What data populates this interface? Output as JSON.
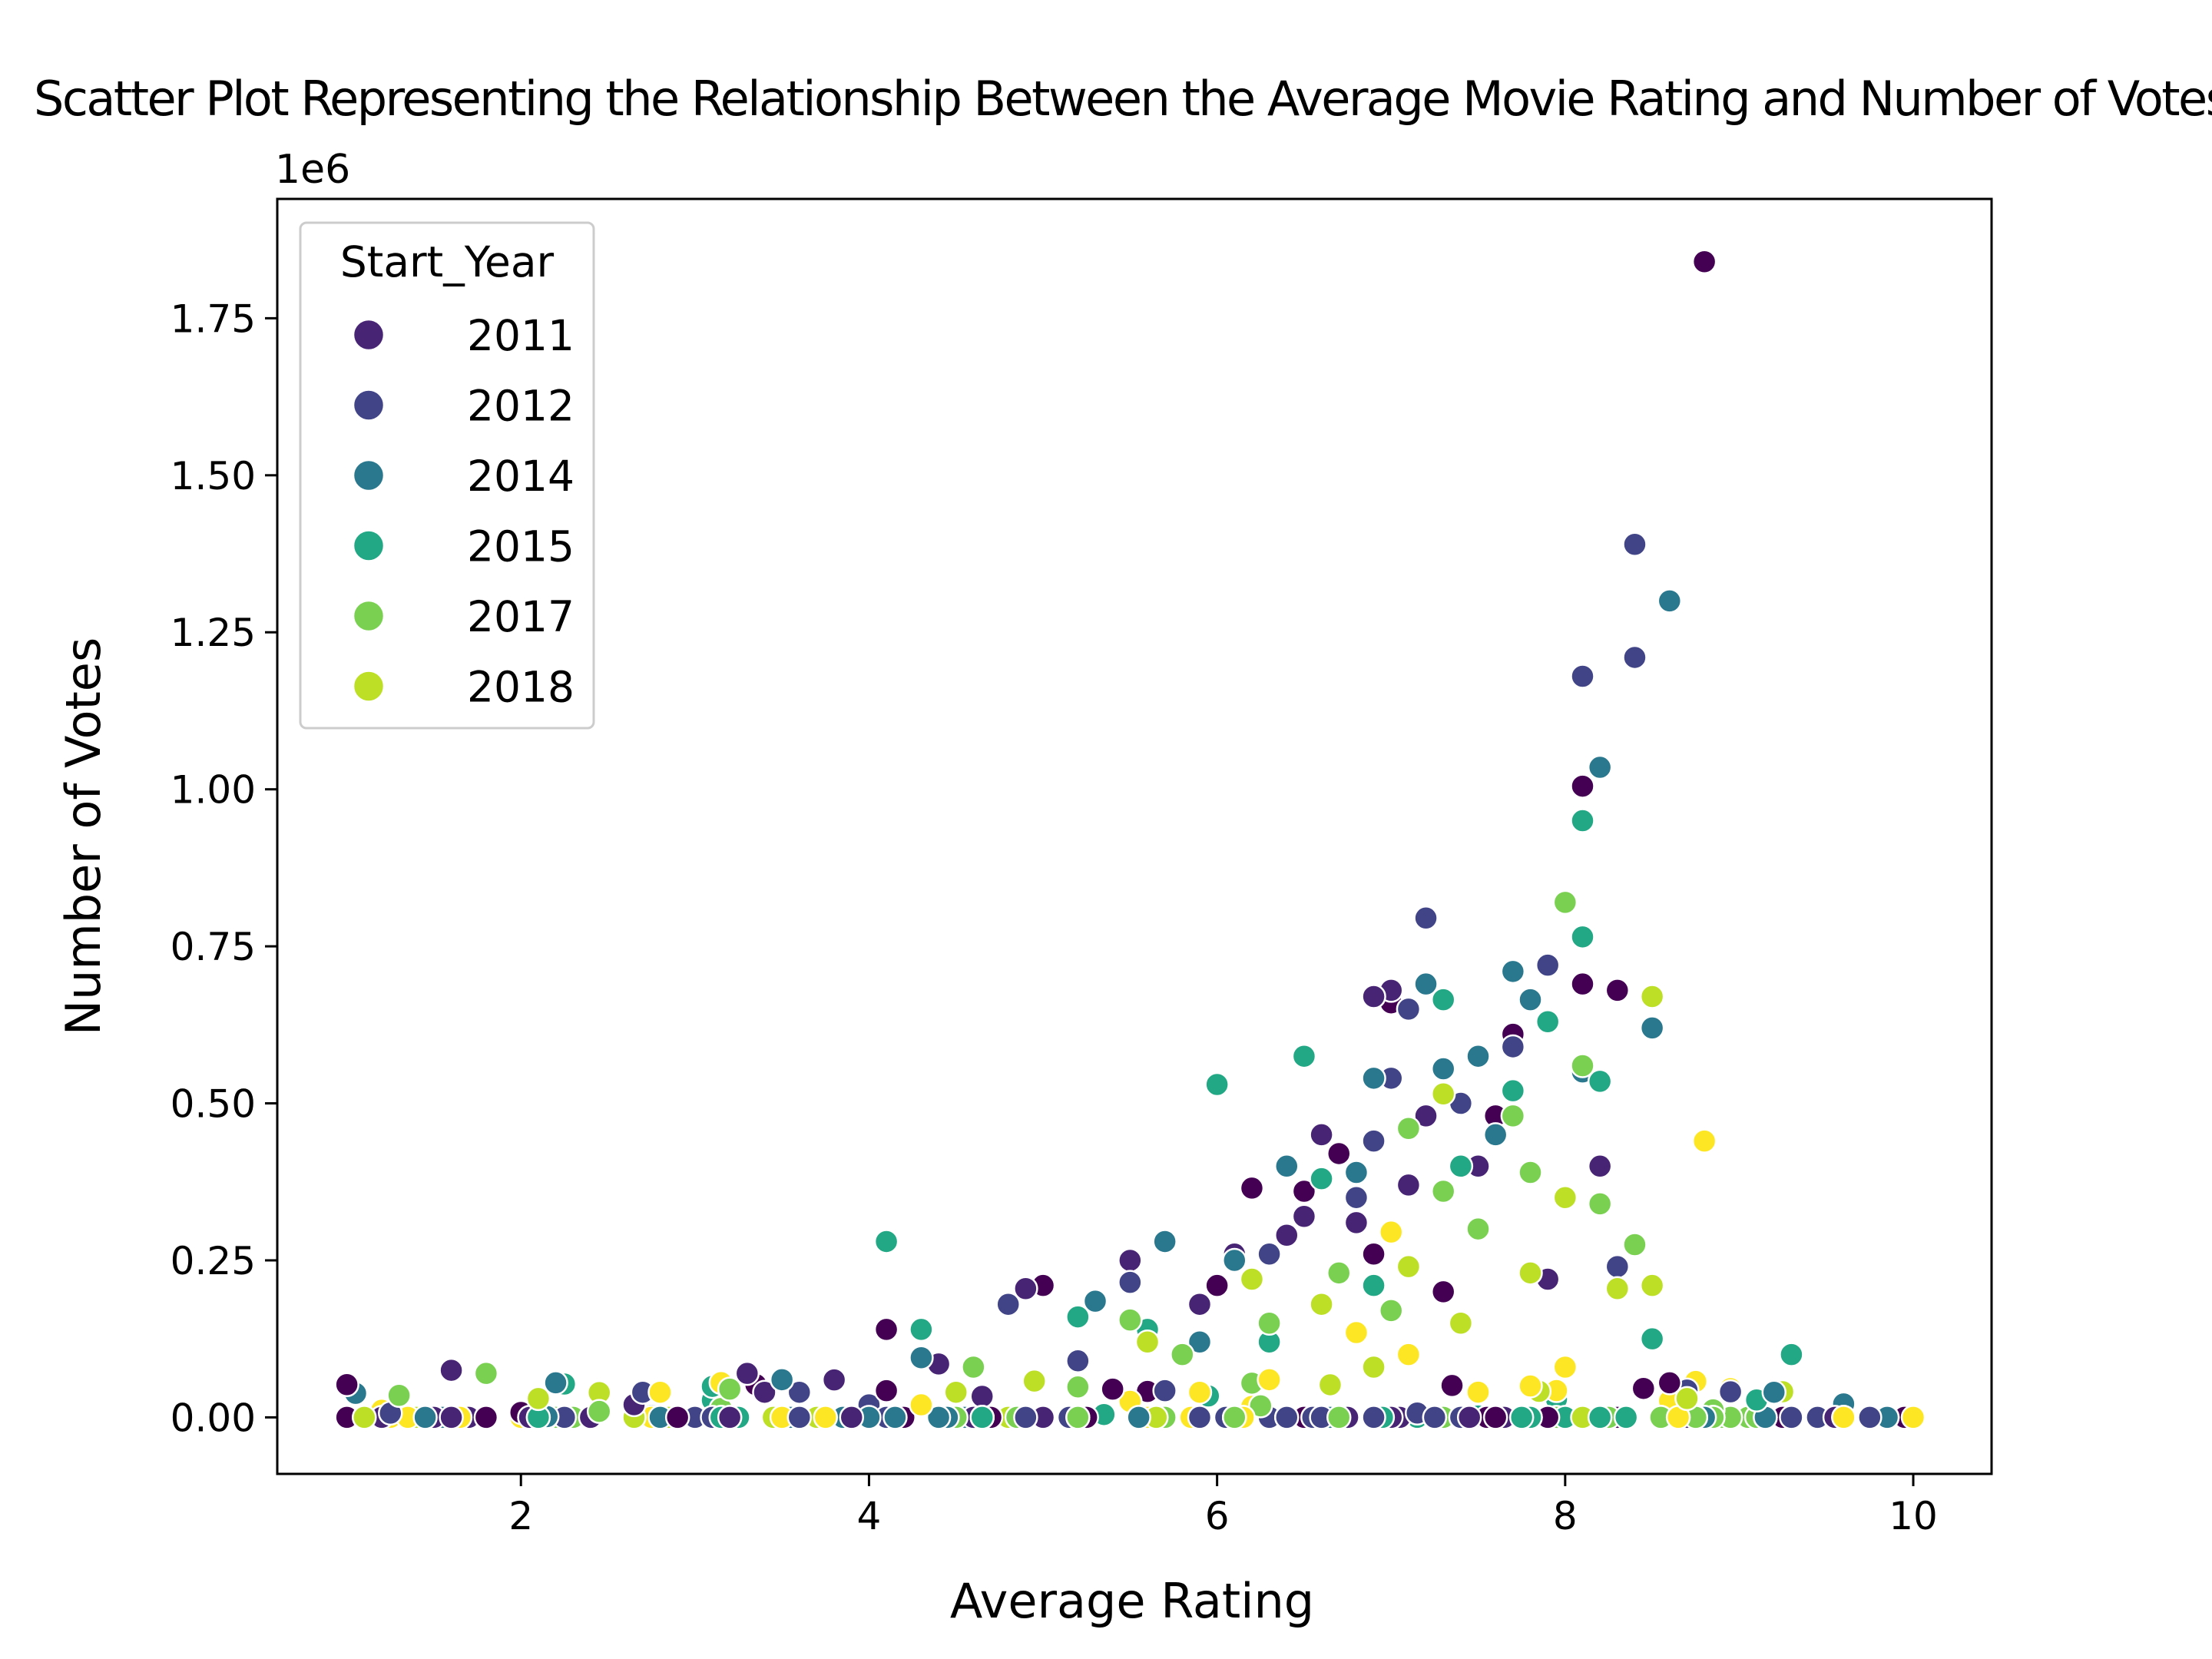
{
  "chart_data": {
    "type": "scatter",
    "title": "Scatter Plot Representing the Relationship Between the Average Movie Rating and Number of Votes",
    "xlabel": "Average Rating",
    "ylabel": "Number of Votes",
    "y_offset_label": "1e6",
    "xlim": [
      0.6,
      10.45
    ],
    "ylim": [
      -0.09,
      1.94
    ],
    "x_ticks": [
      2,
      4,
      6,
      8,
      10
    ],
    "x_tick_labels": [
      "2",
      "4",
      "6",
      "8",
      "10"
    ],
    "y_ticks": [
      0,
      0.25,
      0.5,
      0.75,
      1.0,
      1.25,
      1.5,
      1.75
    ],
    "y_tick_labels": [
      "0.00",
      "0.25",
      "0.50",
      "0.75",
      "1.00",
      "1.25",
      "1.50",
      "1.75"
    ],
    "legend": {
      "title": "Start_Year",
      "position": "upper-left",
      "entries": [
        {
          "label": "2011",
          "color": "#482475"
        },
        {
          "label": "2012",
          "color": "#414487"
        },
        {
          "label": "2014",
          "color": "#2a788e"
        },
        {
          "label": "2015",
          "color": "#22a884"
        },
        {
          "label": "2017",
          "color": "#7ad151"
        },
        {
          "label": "2018",
          "color": "#bddf26"
        }
      ]
    },
    "series": [
      {
        "name": "",
        "color": "#440154",
        "points": [
          [
            8.8,
            1.84
          ],
          [
            8.1,
            1.005
          ],
          [
            7.0,
            0.66
          ],
          [
            8.3,
            0.68
          ],
          [
            6.5,
            0.36
          ],
          [
            6.2,
            0.365
          ],
          [
            5.0,
            0.21
          ],
          [
            4.1,
            0.14
          ],
          [
            2.9,
            0.0
          ],
          [
            6.0,
            0.21
          ],
          [
            7.7,
            0.61
          ],
          [
            8.1,
            0.69
          ],
          [
            6.7,
            0.42
          ],
          [
            7.6,
            0.48
          ],
          [
            8.6,
            0.055
          ],
          [
            5.4,
            0.045
          ],
          [
            6.9,
            0.26
          ],
          [
            7.3,
            0.2
          ]
        ]
      },
      {
        "name": "2011",
        "color": "#482475",
        "points": [
          [
            7.0,
            0.68
          ],
          [
            6.9,
            0.67
          ],
          [
            6.6,
            0.45
          ],
          [
            5.5,
            0.25
          ],
          [
            4.9,
            0.205
          ],
          [
            1.6,
            0.075
          ],
          [
            3.3,
            0.07
          ],
          [
            6.1,
            0.26
          ],
          [
            7.5,
            0.4
          ],
          [
            6.8,
            0.31
          ],
          [
            7.9,
            0.22
          ],
          [
            8.2,
            0.4
          ],
          [
            6.4,
            0.29
          ],
          [
            7.1,
            0.37
          ],
          [
            5.9,
            0.18
          ],
          [
            3.4,
            0.04
          ],
          [
            4.4,
            0.085
          ],
          [
            7.2,
            0.48
          ],
          [
            6.5,
            0.32
          ]
        ]
      },
      {
        "name": "2012",
        "color": "#414487",
        "points": [
          [
            8.4,
            1.39
          ],
          [
            8.1,
            1.18
          ],
          [
            8.4,
            1.21
          ],
          [
            7.2,
            0.795
          ],
          [
            7.9,
            0.72
          ],
          [
            7.1,
            0.65
          ],
          [
            7.0,
            0.54
          ],
          [
            5.5,
            0.215
          ],
          [
            4.8,
            0.18
          ],
          [
            3.6,
            0.04
          ],
          [
            6.3,
            0.26
          ],
          [
            7.4,
            0.5
          ],
          [
            6.8,
            0.35
          ],
          [
            8.3,
            0.24
          ],
          [
            7.7,
            0.59
          ],
          [
            5.2,
            0.09
          ],
          [
            2.7,
            0.04
          ],
          [
            6.9,
            0.44
          ]
        ]
      },
      {
        "name": "2014",
        "color": "#2a788e",
        "points": [
          [
            8.6,
            1.3
          ],
          [
            8.2,
            1.035
          ],
          [
            7.7,
            0.71
          ],
          [
            7.2,
            0.69
          ],
          [
            7.8,
            0.665
          ],
          [
            8.5,
            0.62
          ],
          [
            7.5,
            0.575
          ],
          [
            7.3,
            0.555
          ],
          [
            6.9,
            0.54
          ],
          [
            6.4,
            0.4
          ],
          [
            5.7,
            0.28
          ],
          [
            5.3,
            0.185
          ],
          [
            4.3,
            0.095
          ],
          [
            3.5,
            0.06
          ],
          [
            2.2,
            0.055
          ],
          [
            9.2,
            0.04
          ],
          [
            6.8,
            0.39
          ],
          [
            8.1,
            0.55
          ],
          [
            6.1,
            0.25
          ],
          [
            7.6,
            0.45
          ],
          [
            5.9,
            0.12
          ]
        ]
      },
      {
        "name": "2015",
        "color": "#22a884",
        "points": [
          [
            8.1,
            0.95
          ],
          [
            8.1,
            0.765
          ],
          [
            7.3,
            0.665
          ],
          [
            6.5,
            0.575
          ],
          [
            6.0,
            0.53
          ],
          [
            4.1,
            0.28
          ],
          [
            4.3,
            0.14
          ],
          [
            8.2,
            0.535
          ],
          [
            7.9,
            0.63
          ],
          [
            7.7,
            0.52
          ],
          [
            6.6,
            0.38
          ],
          [
            5.6,
            0.14
          ],
          [
            9.3,
            0.1
          ],
          [
            8.5,
            0.125
          ],
          [
            7.4,
            0.4
          ],
          [
            6.9,
            0.21
          ],
          [
            5.2,
            0.16
          ],
          [
            6.3,
            0.12
          ]
        ]
      },
      {
        "name": "2017",
        "color": "#7ad151",
        "points": [
          [
            8.0,
            0.82
          ],
          [
            8.1,
            0.56
          ],
          [
            7.7,
            0.48
          ],
          [
            7.3,
            0.36
          ],
          [
            7.1,
            0.46
          ],
          [
            6.7,
            0.23
          ],
          [
            5.5,
            0.155
          ],
          [
            4.6,
            0.08
          ],
          [
            1.8,
            0.07
          ],
          [
            1.3,
            0.035
          ],
          [
            8.4,
            0.275
          ],
          [
            7.8,
            0.39
          ],
          [
            6.3,
            0.15
          ],
          [
            7.5,
            0.3
          ],
          [
            5.8,
            0.1
          ],
          [
            8.2,
            0.34
          ],
          [
            3.2,
            0.045
          ],
          [
            7.0,
            0.17
          ]
        ]
      },
      {
        "name": "2018",
        "color": "#bddf26",
        "points": [
          [
            8.5,
            0.67
          ],
          [
            7.3,
            0.515
          ],
          [
            8.5,
            0.21
          ],
          [
            8.3,
            0.205
          ],
          [
            7.8,
            0.23
          ],
          [
            7.1,
            0.24
          ],
          [
            6.2,
            0.22
          ],
          [
            5.6,
            0.12
          ],
          [
            8.0,
            0.35
          ],
          [
            2.1,
            0.03
          ],
          [
            6.6,
            0.18
          ],
          [
            7.4,
            0.15
          ],
          [
            4.5,
            0.04
          ],
          [
            6.9,
            0.08
          ],
          [
            8.7,
            0.03
          ]
        ]
      },
      {
        "name": "",
        "color": "#fde725",
        "points": [
          [
            8.8,
            0.44
          ],
          [
            7.0,
            0.295
          ],
          [
            6.8,
            0.135
          ],
          [
            2.8,
            0.04
          ],
          [
            8.0,
            0.08
          ],
          [
            7.1,
            0.1
          ],
          [
            6.3,
            0.06
          ],
          [
            5.9,
            0.04
          ],
          [
            4.3,
            0.02
          ],
          [
            7.8,
            0.05
          ]
        ]
      }
    ]
  }
}
